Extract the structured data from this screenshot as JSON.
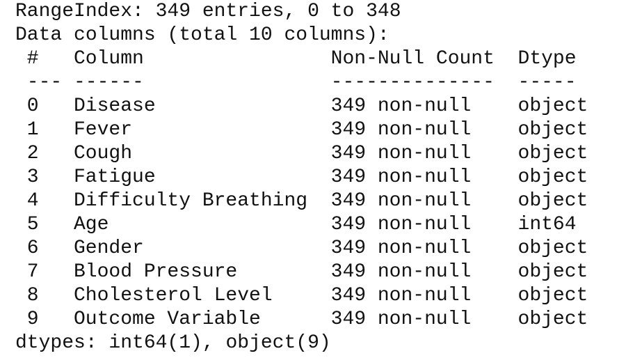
{
  "info_lines": [
    "RangeIndex: 349 entries, 0 to 348",
    "Data columns (total 10 columns):"
  ],
  "table": {
    "header": [
      "#",
      "Column",
      "Non-Null Count",
      "Dtype"
    ],
    "separator": [
      "---",
      "------",
      "--------------",
      "-----"
    ],
    "rows": [
      [
        "0",
        "Disease",
        "349 non-null",
        "object"
      ],
      [
        "1",
        "Fever",
        "349 non-null",
        "object"
      ],
      [
        "2",
        "Cough",
        "349 non-null",
        "object"
      ],
      [
        "3",
        "Fatigue",
        "349 non-null",
        "object"
      ],
      [
        "4",
        "Difficulty Breathing",
        "349 non-null",
        "object"
      ],
      [
        "5",
        "Age",
        "349 non-null",
        "int64"
      ],
      [
        "6",
        "Gender",
        "349 non-null",
        "object"
      ],
      [
        "7",
        "Blood Pressure",
        "349 non-null",
        "object"
      ],
      [
        "8",
        "Cholesterol Level",
        "349 non-null",
        "object"
      ],
      [
        "9",
        "Outcome Variable",
        "349 non-null",
        "object"
      ]
    ]
  },
  "footer": "dtypes: int64(1), object(9)"
}
